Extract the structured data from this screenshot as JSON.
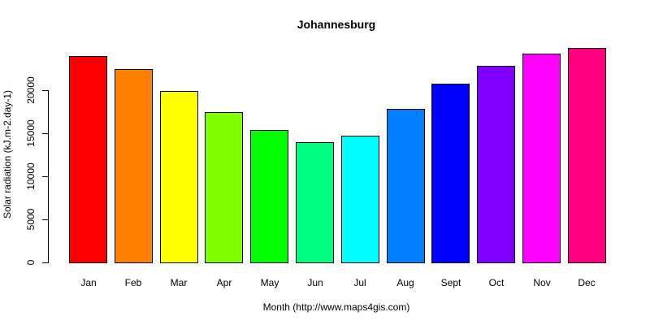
{
  "chart_data": {
    "type": "bar",
    "title": "Johannesburg",
    "xlabel": "Month (http://www.maps4gis.com)",
    "ylabel": "Solar radiation (kJ.m-2.day-1)",
    "categories": [
      "Jan",
      "Feb",
      "Mar",
      "Apr",
      "May",
      "Jun",
      "Jul",
      "Aug",
      "Sept",
      "Oct",
      "Nov",
      "Dec"
    ],
    "values": [
      24000,
      22500,
      19900,
      17500,
      15400,
      14000,
      14700,
      17800,
      20800,
      22800,
      24200,
      24900
    ],
    "colors": [
      "#FF0000",
      "#FF8000",
      "#FFFF00",
      "#80FF00",
      "#00FF00",
      "#00FF80",
      "#00FFFF",
      "#0080FF",
      "#0000FF",
      "#8000FF",
      "#FF00FF",
      "#FF0080"
    ],
    "yticks": [
      0,
      5000,
      10000,
      15000,
      20000
    ],
    "ytick_labels": [
      "0",
      "5000",
      "10000",
      "15000",
      "20000"
    ],
    "ylim": [
      0,
      25000
    ],
    "grid": false,
    "legend": null
  }
}
